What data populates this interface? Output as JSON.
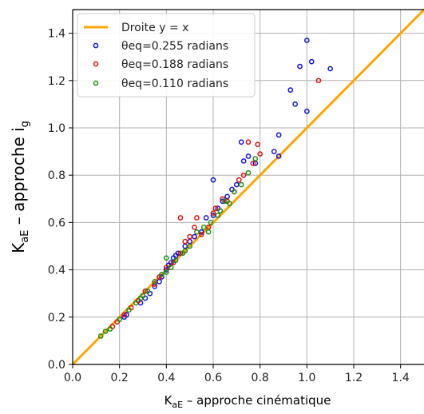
{
  "chart_data": {
    "type": "scatter",
    "xlabel": {
      "main": "K",
      "sub": "aE",
      "rest": " – approche cinématique"
    },
    "ylabel": {
      "main": "K",
      "sub": "aE",
      "rest": " – approche i",
      "tail_sub": "g"
    },
    "xlim": [
      0.0,
      1.5
    ],
    "ylim": [
      0.0,
      1.5
    ],
    "xticks": [
      "0.0",
      "0.2",
      "0.4",
      "0.6",
      "0.8",
      "1.0",
      "1.2",
      "1.4"
    ],
    "yticks": [
      "0.0",
      "0.2",
      "0.4",
      "0.6",
      "0.8",
      "1.0",
      "1.2",
      "1.4"
    ],
    "grid": true,
    "legend_position": "top-left",
    "line": {
      "name": "Droite y = x",
      "color": "#FFA500",
      "x": [
        0.0,
        1.5
      ],
      "y": [
        0.0,
        1.5
      ]
    },
    "series": [
      {
        "name": "θeq=0.255 radians",
        "color": "#1010e0",
        "points": [
          [
            0.22,
            0.2
          ],
          [
            0.23,
            0.21
          ],
          [
            0.29,
            0.26
          ],
          [
            0.31,
            0.28
          ],
          [
            0.33,
            0.3
          ],
          [
            0.35,
            0.33
          ],
          [
            0.37,
            0.35
          ],
          [
            0.38,
            0.37
          ],
          [
            0.4,
            0.4
          ],
          [
            0.42,
            0.43
          ],
          [
            0.43,
            0.45
          ],
          [
            0.45,
            0.47
          ],
          [
            0.48,
            0.5
          ],
          [
            0.5,
            0.52
          ],
          [
            0.52,
            0.54
          ],
          [
            0.55,
            0.56
          ],
          [
            0.57,
            0.62
          ],
          [
            0.6,
            0.63
          ],
          [
            0.62,
            0.66
          ],
          [
            0.64,
            0.69
          ],
          [
            0.66,
            0.71
          ],
          [
            0.68,
            0.74
          ],
          [
            0.7,
            0.76
          ],
          [
            0.73,
            0.86
          ],
          [
            0.75,
            0.88
          ],
          [
            0.78,
            0.85
          ],
          [
            0.86,
            0.9
          ],
          [
            0.88,
            0.97
          ],
          [
            0.6,
            0.78
          ],
          [
            0.72,
            0.94
          ],
          [
            0.93,
            1.16
          ],
          [
            0.95,
            1.1
          ],
          [
            1.0,
            1.07
          ],
          [
            0.97,
            1.26
          ],
          [
            1.02,
            1.28
          ],
          [
            1.0,
            1.37
          ],
          [
            1.1,
            1.25
          ],
          [
            0.88,
            0.88
          ],
          [
            0.44,
            0.46
          ],
          [
            0.41,
            0.42
          ]
        ]
      },
      {
        "name": "θeq=0.188 radians",
        "color": "#e01010",
        "points": [
          [
            0.17,
            0.16
          ],
          [
            0.19,
            0.18
          ],
          [
            0.22,
            0.21
          ],
          [
            0.25,
            0.24
          ],
          [
            0.28,
            0.27
          ],
          [
            0.31,
            0.31
          ],
          [
            0.35,
            0.34
          ],
          [
            0.37,
            0.37
          ],
          [
            0.4,
            0.41
          ],
          [
            0.43,
            0.43
          ],
          [
            0.46,
            0.47
          ],
          [
            0.48,
            0.52
          ],
          [
            0.5,
            0.54
          ],
          [
            0.52,
            0.58
          ],
          [
            0.55,
            0.55
          ],
          [
            0.58,
            0.58
          ],
          [
            0.61,
            0.66
          ],
          [
            0.64,
            0.7
          ],
          [
            0.66,
            0.69
          ],
          [
            0.69,
            0.73
          ],
          [
            0.71,
            0.78
          ],
          [
            0.73,
            0.8
          ],
          [
            0.75,
            0.94
          ],
          [
            0.77,
            0.85
          ],
          [
            0.79,
            0.93
          ],
          [
            0.8,
            0.89
          ],
          [
            1.05,
            1.2
          ],
          [
            0.46,
            0.62
          ],
          [
            0.53,
            0.62
          ],
          [
            0.6,
            0.64
          ]
        ]
      },
      {
        "name": "θeq=0.110 radians",
        "color": "#1a8f1a",
        "points": [
          [
            0.12,
            0.12
          ],
          [
            0.14,
            0.14
          ],
          [
            0.16,
            0.15
          ],
          [
            0.2,
            0.19
          ],
          [
            0.24,
            0.23
          ],
          [
            0.27,
            0.26
          ],
          [
            0.29,
            0.28
          ],
          [
            0.32,
            0.31
          ],
          [
            0.35,
            0.35
          ],
          [
            0.4,
            0.39
          ],
          [
            0.42,
            0.41
          ],
          [
            0.44,
            0.44
          ],
          [
            0.47,
            0.47
          ],
          [
            0.5,
            0.5
          ],
          [
            0.53,
            0.56
          ],
          [
            0.56,
            0.58
          ],
          [
            0.59,
            0.6
          ],
          [
            0.63,
            0.65
          ],
          [
            0.65,
            0.69
          ],
          [
            0.67,
            0.68
          ],
          [
            0.69,
            0.73
          ],
          [
            0.72,
            0.76
          ],
          [
            0.75,
            0.81
          ],
          [
            0.78,
            0.87
          ],
          [
            0.58,
            0.56
          ],
          [
            0.62,
            0.63
          ],
          [
            0.4,
            0.45
          ],
          [
            0.48,
            0.48
          ],
          [
            0.38,
            0.38
          ],
          [
            0.3,
            0.29
          ]
        ]
      }
    ]
  }
}
